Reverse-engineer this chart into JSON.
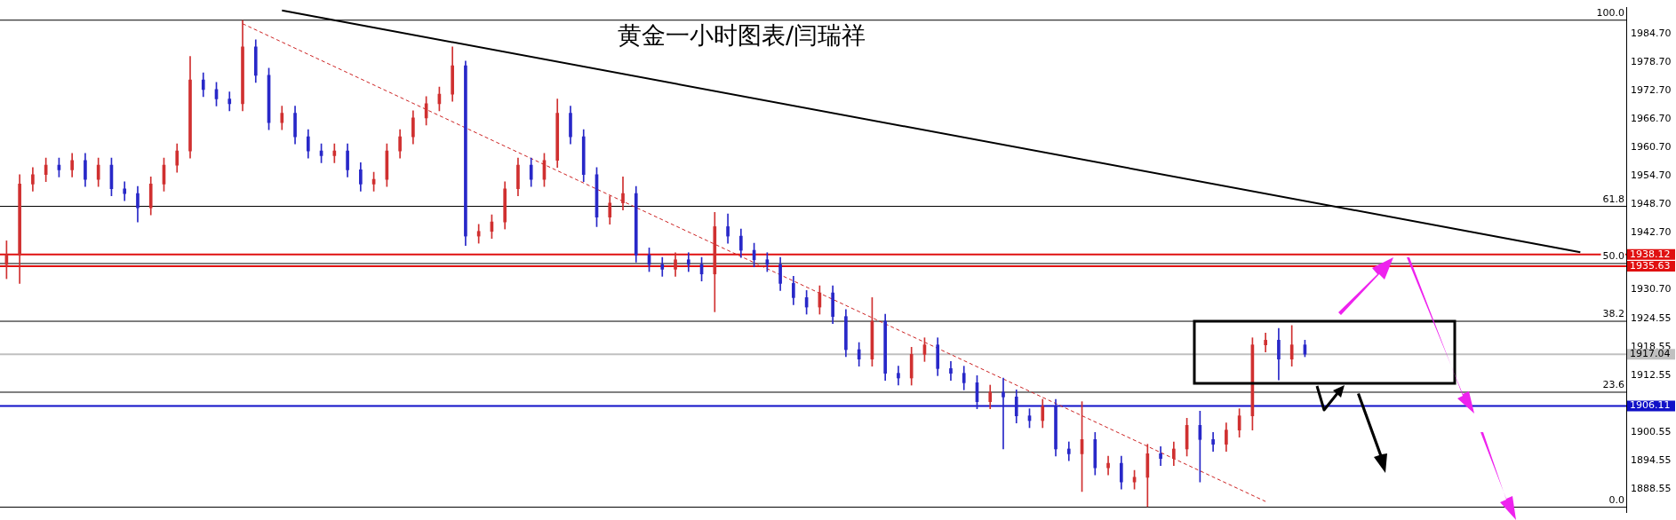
{
  "chart_data": {
    "type": "candlestick",
    "title": "黄金一小时图表/闫瑞祥",
    "categories": [
      null,
      null,
      null,
      null,
      null,
      null,
      null,
      null,
      null,
      null,
      null,
      null,
      null,
      null,
      null,
      null,
      null,
      null,
      null,
      null,
      null,
      null,
      null,
      null,
      null,
      null,
      null,
      null,
      null,
      null,
      null,
      null,
      null,
      null,
      null,
      null,
      null,
      null,
      null,
      null,
      null,
      null,
      null,
      null,
      null,
      null,
      null,
      null,
      null,
      null,
      null,
      null,
      null,
      null,
      null,
      null,
      null,
      null,
      null,
      null,
      null,
      null,
      null,
      null,
      null,
      null,
      null,
      null,
      null,
      null,
      null,
      null,
      null,
      null,
      null,
      null,
      null,
      null,
      null,
      null,
      null,
      null,
      null,
      null,
      null,
      null,
      null,
      null,
      null,
      null,
      null,
      null,
      null,
      null,
      null,
      null,
      null,
      null,
      null,
      null,
      null,
      null,
      null,
      null,
      null,
      null,
      null,
      null,
      null,
      null,
      null,
      null,
      null,
      null,
      null,
      null,
      null,
      null,
      null,
      null,
      null,
      null,
      null,
      null
    ],
    "ohlc": [
      [
        1936,
        1941,
        1933,
        1938
      ],
      [
        1938,
        1955,
        1932,
        1953
      ],
      [
        1953,
        1956.5,
        1951.5,
        1955
      ],
      [
        1955,
        1958.5,
        1953.5,
        1957
      ],
      [
        1957,
        1958.5,
        1954.5,
        1956
      ],
      [
        1956,
        1959.5,
        1954.5,
        1958
      ],
      [
        1958,
        1959.5,
        1952.5,
        1954
      ],
      [
        1954,
        1958.5,
        1952.5,
        1957
      ],
      [
        1957,
        1958.5,
        1950.5,
        1952
      ],
      [
        1952,
        1953.5,
        1949.5,
        1951
      ],
      [
        1951,
        1952.5,
        1945,
        1948
      ],
      [
        1948,
        1954.5,
        1946.5,
        1953
      ],
      [
        1953,
        1958.5,
        1951.5,
        1957
      ],
      [
        1957,
        1961.5,
        1955.5,
        1960
      ],
      [
        1960,
        1980,
        1958.5,
        1975
      ],
      [
        1975,
        1976.5,
        1971.5,
        1973
      ],
      [
        1973,
        1974.5,
        1969.5,
        1971
      ],
      [
        1971,
        1972.5,
        1968.5,
        1970
      ],
      [
        1970,
        1987.6,
        1968.5,
        1982
      ],
      [
        1982,
        1983.5,
        1974.5,
        1976
      ],
      [
        1976,
        1977.5,
        1964.5,
        1966
      ],
      [
        1966,
        1969.5,
        1964.5,
        1968
      ],
      [
        1968,
        1969.5,
        1961.5,
        1963
      ],
      [
        1963,
        1964.5,
        1958.5,
        1960
      ],
      [
        1960,
        1961.5,
        1957.5,
        1959
      ],
      [
        1959,
        1961.5,
        1957.5,
        1960
      ],
      [
        1960,
        1961.5,
        1954.5,
        1956
      ],
      [
        1956,
        1957.5,
        1951.5,
        1953
      ],
      [
        1953,
        1955.5,
        1951.5,
        1954
      ],
      [
        1954,
        1961.5,
        1952.5,
        1960
      ],
      [
        1960,
        1964.5,
        1958.5,
        1963
      ],
      [
        1963,
        1968.5,
        1961.5,
        1967
      ],
      [
        1967,
        1971.5,
        1965.5,
        1970
      ],
      [
        1970,
        1973.5,
        1968.5,
        1972
      ],
      [
        1972,
        1982,
        1970.5,
        1978
      ],
      [
        1978,
        1979,
        1940,
        1942
      ],
      [
        1942,
        1944.5,
        1940.5,
        1943
      ],
      [
        1943,
        1946.5,
        1941.5,
        1945
      ],
      [
        1945,
        1953.5,
        1943.5,
        1952
      ],
      [
        1952,
        1958.5,
        1950.5,
        1957
      ],
      [
        1957,
        1958.5,
        1952.5,
        1954
      ],
      [
        1954,
        1959.5,
        1952.5,
        1958
      ],
      [
        1958,
        1971,
        1956.5,
        1968
      ],
      [
        1968,
        1969.5,
        1961.5,
        1963
      ],
      [
        1963,
        1964.5,
        1953.5,
        1955
      ],
      [
        1955,
        1956.5,
        1944,
        1946
      ],
      [
        1946,
        1950.5,
        1944.5,
        1949
      ],
      [
        1949,
        1954.5,
        1947.5,
        1951
      ],
      [
        1951,
        1952.5,
        1936.5,
        1938
      ],
      [
        1938,
        1939.5,
        1934.5,
        1936
      ],
      [
        1936,
        1937.5,
        1933.5,
        1935
      ],
      [
        1935,
        1938.5,
        1933.5,
        1937
      ],
      [
        1937,
        1938.5,
        1934.5,
        1936
      ],
      [
        1936,
        1937.5,
        1932.5,
        1934
      ],
      [
        1934,
        1947,
        1926,
        1944
      ],
      [
        1944,
        1946.7,
        1940.5,
        1942
      ],
      [
        1942,
        1943.5,
        1937.5,
        1939
      ],
      [
        1939,
        1940.5,
        1935.5,
        1937
      ],
      [
        1937,
        1938.5,
        1934.5,
        1936
      ],
      [
        1936,
        1937.5,
        1930.5,
        1932
      ],
      [
        1932,
        1933.5,
        1927.5,
        1929
      ],
      [
        1929,
        1930.5,
        1925.5,
        1927
      ],
      [
        1927,
        1931.5,
        1925.5,
        1930
      ],
      [
        1930,
        1931.5,
        1923.5,
        1925
      ],
      [
        1925,
        1926.5,
        1916.5,
        1918
      ],
      [
        1918,
        1919.5,
        1914.5,
        1916
      ],
      [
        1916,
        1929,
        1914.5,
        1924
      ],
      [
        1924,
        1925.5,
        1911.5,
        1913
      ],
      [
        1913,
        1914.5,
        1910.5,
        1912
      ],
      [
        1912,
        1918.5,
        1910.5,
        1917
      ],
      [
        1917,
        1920.5,
        1915.5,
        1919
      ],
      [
        1919,
        1920.5,
        1912.5,
        1914
      ],
      [
        1914,
        1915.5,
        1911.5,
        1913
      ],
      [
        1913,
        1914.5,
        1909.5,
        1911
      ],
      [
        1911,
        1912.5,
        1905.5,
        1907
      ],
      [
        1907,
        1910.5,
        1905.5,
        1909
      ],
      [
        1909,
        1912,
        1897,
        1908
      ],
      [
        1908,
        1909.5,
        1902.5,
        1904
      ],
      [
        1904,
        1905.5,
        1901.5,
        1903
      ],
      [
        1903,
        1907.5,
        1901.5,
        1906
      ],
      [
        1906,
        1907.5,
        1895.5,
        1897
      ],
      [
        1897,
        1898.5,
        1894.5,
        1896
      ],
      [
        1896,
        1907,
        1888,
        1899
      ],
      [
        1899,
        1900.5,
        1891.5,
        1893
      ],
      [
        1893,
        1895.5,
        1891.5,
        1894
      ],
      [
        1894,
        1895.5,
        1888.5,
        1890
      ],
      [
        1890,
        1892.5,
        1888.5,
        1891
      ],
      [
        1891,
        1898,
        1884.8,
        1896
      ],
      [
        1896,
        1897.5,
        1893.5,
        1895
      ],
      [
        1895,
        1898.5,
        1893.5,
        1897
      ],
      [
        1897,
        1903.5,
        1895.5,
        1902
      ],
      [
        1902,
        1905,
        1890,
        1899
      ],
      [
        1899,
        1900.5,
        1896.5,
        1898
      ],
      [
        1898,
        1902.5,
        1896.5,
        1901
      ],
      [
        1901,
        1905.5,
        1899.5,
        1904
      ],
      [
        1904,
        1920.5,
        1901,
        1919
      ],
      [
        1919,
        1921.5,
        1917.5,
        1920
      ],
      [
        1920,
        1922.5,
        1911.6,
        1916
      ],
      [
        1916,
        1923.1,
        1914.5,
        1919
      ],
      [
        1919,
        1920,
        1916.5,
        1917.04
      ],
      null,
      null,
      null,
      null,
      null,
      null,
      null,
      null,
      null,
      null,
      null,
      null,
      null,
      null,
      null,
      null,
      null,
      null,
      null,
      null,
      null,
      null,
      null,
      null
    ],
    "colors": [
      "#d03030",
      "#d03030",
      "#d03030",
      "#d03030",
      "#2828c8",
      "#d03030",
      "#2828c8",
      "#d03030",
      "#2828c8",
      "#2828c8",
      "#2828c8",
      "#d03030",
      "#d03030",
      "#d03030",
      "#d03030",
      "#2828c8",
      "#2828c8",
      "#2828c8",
      "#d03030",
      "#2828c8",
      "#2828c8",
      "#d03030",
      "#2828c8",
      "#2828c8",
      "#2828c8",
      "#d03030",
      "#2828c8",
      "#2828c8",
      "#d03030",
      "#d03030",
      "#d03030",
      "#d03030",
      "#d03030",
      "#d03030",
      "#d03030",
      "#2828c8",
      "#d03030",
      "#d03030",
      "#d03030",
      "#d03030",
      "#2828c8",
      "#d03030",
      "#d03030",
      "#2828c8",
      "#2828c8",
      "#2828c8",
      "#d03030",
      "#d03030",
      "#2828c8",
      "#2828c8",
      "#2828c8",
      "#d03030",
      "#2828c8",
      "#2828c8",
      "#d03030",
      "#2828c8",
      "#2828c8",
      "#2828c8",
      "#2828c8",
      "#2828c8",
      "#2828c8",
      "#2828c8",
      "#d03030",
      "#2828c8",
      "#2828c8",
      "#2828c8",
      "#d03030",
      "#2828c8",
      "#2828c8",
      "#d03030",
      "#d03030",
      "#2828c8",
      "#2828c8",
      "#2828c8",
      "#2828c8",
      "#d03030",
      "#2828c8",
      "#2828c8",
      "#2828c8",
      "#d03030",
      "#2828c8",
      "#2828c8",
      "#d03030",
      "#2828c8",
      "#d03030",
      "#2828c8",
      "#d03030",
      "#d03030",
      "#2828c8",
      "#d03030",
      "#d03030",
      "#2828c8",
      "#2828c8",
      "#d03030",
      "#d03030",
      "#d03030",
      "#d03030",
      "#2828c8",
      "#d03030",
      "#2828c8",
      null,
      null,
      null,
      null,
      null,
      null,
      null,
      null,
      null,
      null,
      null,
      null,
      null,
      null,
      null,
      null,
      null,
      null,
      null,
      null,
      null,
      null,
      null,
      null
    ],
    "series": [
      {
        "type": "line",
        "color": "#000000",
        "line_style": "solid",
        "values": [
          null,
          null,
          null,
          null,
          null,
          null,
          null,
          null,
          null,
          null,
          null,
          null,
          null,
          null,
          null,
          null,
          null,
          null,
          null,
          null,
          null,
          1989.7,
          null,
          null,
          null,
          null,
          null,
          null,
          null,
          null,
          null,
          null,
          null,
          null,
          null,
          null,
          null,
          null,
          null,
          null,
          null,
          null,
          null,
          null,
          null,
          null,
          null,
          null,
          null,
          null,
          null,
          null,
          null,
          null,
          null,
          null,
          null,
          null,
          null,
          null,
          null,
          null,
          null,
          null,
          null,
          null,
          null,
          null,
          null,
          null,
          null,
          null,
          null,
          null,
          null,
          null,
          null,
          null,
          null,
          null,
          null,
          null,
          null,
          null,
          null,
          null,
          null,
          null,
          null,
          null,
          null,
          null,
          null,
          null,
          null,
          null,
          null,
          null,
          null,
          null,
          null,
          null,
          null,
          null,
          null,
          null,
          null,
          null,
          null,
          null,
          null,
          null,
          null,
          null,
          null,
          null,
          null,
          null,
          null,
          null,
          1938.6,
          null,
          null,
          null
        ]
      },
      {
        "type": "line",
        "color": "#cc2222",
        "line_style": "dashed",
        "values": [
          null,
          null,
          null,
          null,
          null,
          null,
          null,
          null,
          null,
          null,
          null,
          null,
          null,
          null,
          null,
          null,
          null,
          null,
          1986.9,
          null,
          null,
          null,
          null,
          null,
          null,
          null,
          null,
          null,
          null,
          null,
          null,
          null,
          null,
          null,
          null,
          null,
          null,
          null,
          null,
          null,
          null,
          null,
          null,
          null,
          null,
          null,
          null,
          null,
          null,
          null,
          null,
          null,
          null,
          null,
          null,
          null,
          null,
          null,
          null,
          null,
          null,
          null,
          null,
          null,
          null,
          null,
          null,
          null,
          null,
          null,
          null,
          null,
          null,
          null,
          null,
          null,
          null,
          null,
          null,
          null,
          null,
          null,
          null,
          null,
          null,
          null,
          null,
          null,
          null,
          null,
          null,
          null,
          null,
          null,
          null,
          null,
          1885.9,
          null,
          null,
          null,
          null,
          null,
          null,
          null,
          null,
          null,
          null,
          null,
          null,
          null,
          null,
          null,
          null,
          null,
          null,
          null,
          null,
          null,
          null,
          null,
          null,
          null,
          null,
          null
        ]
      }
    ],
    "ylim": [
      1883.6,
      1990.3
    ],
    "yticks": [
      1888.55,
      1894.55,
      1900.55,
      1912.55,
      1918.55,
      1924.55,
      {
        "value": 1930.7,
        "label": "1930.70"
      },
      {
        "value": 1942.7,
        "label": "1942.70"
      },
      {
        "value": 1948.7,
        "label": "1948.70"
      },
      {
        "value": 1954.7,
        "label": "1954.70"
      },
      {
        "value": 1960.7,
        "label": "1960.70"
      },
      {
        "value": 1966.7,
        "label": "1966.70"
      },
      {
        "value": 1972.7,
        "label": "1972.70"
      },
      {
        "value": 1978.7,
        "label": "1978.70"
      },
      {
        "value": 1984.7,
        "label": "1984.70"
      }
    ],
    "annotations": [
      {
        "text": "100.0",
        "y": 1987.65
      },
      {
        "text": "61.8",
        "y": 1948.3
      },
      {
        "text": "50.0",
        "y": 1936.2
      },
      {
        "text": "38.2",
        "y": 1924.0
      },
      {
        "text": "23.6",
        "y": 1909.0
      },
      {
        "text": "0.0",
        "y": 1884.7
      }
    ],
    "ref_lines": [
      {
        "axis": "y",
        "value": 1987.65,
        "color": "#000000"
      },
      {
        "axis": "y",
        "value": 1948.3,
        "color": "#000000"
      },
      {
        "axis": "y",
        "value": 1936.2,
        "color": "#000000"
      },
      {
        "axis": "y",
        "value": 1924.0,
        "color": "#000000"
      },
      {
        "axis": "y",
        "value": 1909.0,
        "color": "#000000"
      },
      {
        "axis": "y",
        "value": 1884.7,
        "color": "#000000"
      },
      {
        "axis": "y",
        "value": 1938.12,
        "label": "1938.12",
        "color": "#e01010"
      },
      {
        "axis": "y",
        "value": 1935.63,
        "label": "1935.63",
        "color": "#e01010"
      },
      {
        "axis": "y",
        "value": 1906.11,
        "label": "1906.11",
        "color": "#1010c8"
      },
      {
        "axis": "y",
        "value": 1917.04,
        "label": "1917.04",
        "color": "#c0c0c0"
      }
    ],
    "tick_labels": "y",
    "legend": false
  }
}
